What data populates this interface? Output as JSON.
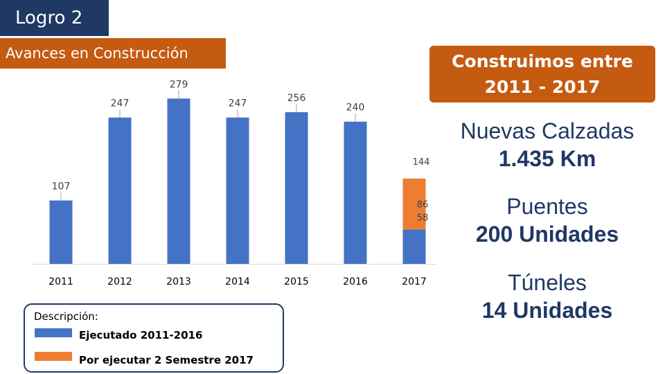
{
  "header": {
    "title": "Logro 2",
    "subtitle": "Avances en Construcción"
  },
  "callout": {
    "line1": "Construimos entre",
    "line2": "2011 - 2017"
  },
  "stats": [
    {
      "label": "Nuevas Calzadas",
      "value": "1.435 Km"
    },
    {
      "label": "Puentes",
      "value": "200 Unidades"
    },
    {
      "label": "Túneles",
      "value": "14 Unidades"
    }
  ],
  "legend": {
    "heading": "Descripción:",
    "items": [
      {
        "label": "Ejecutado 2011-2016",
        "color": "#4472c4"
      },
      {
        "label": "Por ejecutar 2 Semestre 2017",
        "color": "#ed7d31"
      }
    ]
  },
  "chart_data": {
    "type": "bar",
    "stacked": true,
    "title": "",
    "xlabel": "",
    "ylabel": "",
    "ylim": [
      0,
      300
    ],
    "categories": [
      "2011",
      "2012",
      "2013",
      "2014",
      "2015",
      "2016",
      "2017"
    ],
    "series": [
      {
        "name": "Ejecutado 2011-2016",
        "color": "#4472c4",
        "values": [
          107,
          247,
          279,
          247,
          256,
          240,
          58
        ]
      },
      {
        "name": "Por ejecutar 2 Semestre 2017",
        "color": "#ed7d31",
        "values": [
          0,
          0,
          0,
          0,
          0,
          0,
          86
        ]
      }
    ],
    "totals": [
      107,
      247,
      279,
      247,
      256,
      240,
      144
    ]
  }
}
